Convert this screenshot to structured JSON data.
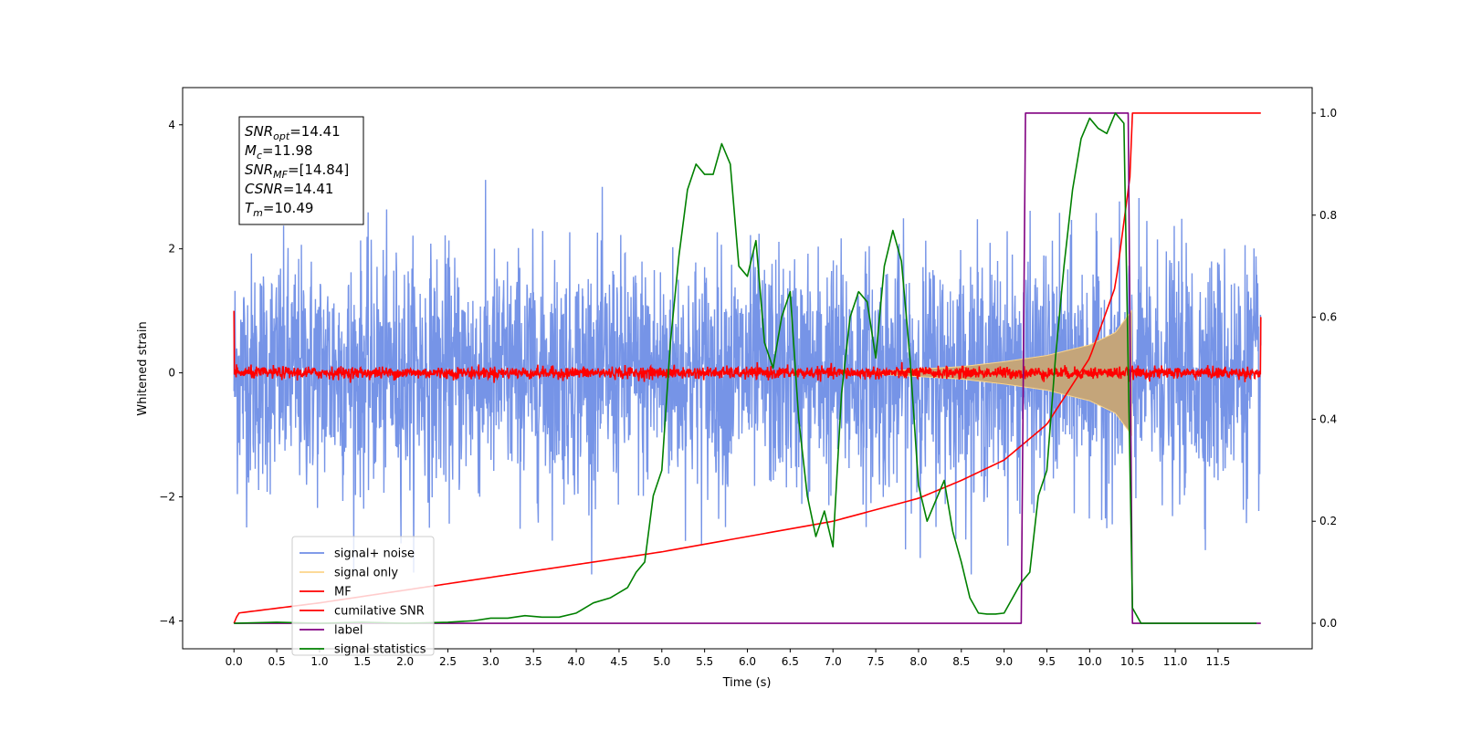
{
  "chart_data": {
    "type": "line",
    "xlabel": "Time (s)",
    "ylabel": "Whitened strain",
    "xlim": [
      -0.6,
      12.6
    ],
    "ylim": [
      -4.45,
      4.6
    ],
    "ylim_right": [
      -0.05,
      1.05
    ],
    "x_ticks": [
      "0.0",
      "0.5",
      "1.0",
      "1.5",
      "2.0",
      "2.5",
      "3.0",
      "3.5",
      "4.0",
      "4.5",
      "5.0",
      "5.5",
      "6.0",
      "6.5",
      "7.0",
      "7.5",
      "8.0",
      "8.5",
      "9.0",
      "9.5",
      "10.0",
      "10.5",
      "11.0",
      "11.5"
    ],
    "y_ticks_left": [
      "4",
      "2",
      "0",
      "−2",
      "−4"
    ],
    "y_ticks_right": [
      "1.0",
      "0.8",
      "0.6",
      "0.4",
      "0.2",
      "0.0"
    ],
    "annotation": [
      {
        "base": "SNR",
        "sub": "opt",
        "value": "=14.41"
      },
      {
        "base": "M",
        "sub": "c",
        "value": "=11.98"
      },
      {
        "base": "SNR",
        "sub": "MF",
        "value": "=[14.84]"
      },
      {
        "base": "CSNR",
        "sub": "",
        "value": "=14.41"
      },
      {
        "base": "T",
        "sub": "m",
        "value": "=10.49"
      }
    ],
    "legend": {
      "placement": "lower-left",
      "entries": [
        {
          "label": "signal+ noise",
          "color": "#6f8ee6"
        },
        {
          "label": "signal only",
          "color": "#fbd58a"
        },
        {
          "label": "MF",
          "color": "#ff0000"
        },
        {
          "label": "cumilative SNR",
          "color": "#ff0000"
        },
        {
          "label": "label",
          "color": "#800080"
        },
        {
          "label": "signal statistics",
          "color": "#008000"
        }
      ]
    },
    "series": [
      {
        "name": "signal+ noise",
        "axis": "left",
        "color": "#6f8ee6",
        "x_range": [
          0.0,
          12.0
        ],
        "std": 0.95,
        "min": -3.25,
        "max": 3.5
      },
      {
        "name": "signal only",
        "axis": "left",
        "color": "#fbd58a",
        "envelope_x": [
          7.5,
          8.5,
          9.0,
          9.5,
          10.0,
          10.3,
          10.49
        ],
        "envelope_amp": [
          0.02,
          0.1,
          0.18,
          0.28,
          0.45,
          0.65,
          1.0
        ]
      },
      {
        "name": "MF",
        "axis": "left",
        "color": "#ff0000",
        "x_range": [
          0.0,
          12.0
        ],
        "start_value": 1.0,
        "end_value": 0.9,
        "noise_amp": 0.08
      },
      {
        "name": "cumilative SNR",
        "axis": "right",
        "color": "#ff0000",
        "x": [
          0.0,
          0.05,
          1.0,
          2.0,
          3.0,
          4.0,
          5.0,
          6.0,
          7.0,
          8.0,
          8.5,
          9.0,
          9.5,
          10.0,
          10.3,
          10.49,
          10.5,
          12.0
        ],
        "values": [
          0.0,
          0.02,
          0.04,
          0.065,
          0.09,
          0.115,
          0.14,
          0.17,
          0.2,
          0.245,
          0.28,
          0.32,
          0.39,
          0.52,
          0.66,
          0.9,
          1.0,
          1.0
        ]
      },
      {
        "name": "label",
        "axis": "right",
        "color": "#800080",
        "x": [
          0.0,
          9.2,
          9.25,
          10.45,
          10.5,
          12.0
        ],
        "values": [
          0.0,
          0.0,
          1.0,
          1.0,
          0.0,
          0.0
        ]
      },
      {
        "name": "signal statistics",
        "axis": "right",
        "color": "#008000",
        "x": [
          0.0,
          0.5,
          1.0,
          1.5,
          2.0,
          2.5,
          2.8,
          3.0,
          3.2,
          3.4,
          3.6,
          3.8,
          4.0,
          4.2,
          4.4,
          4.6,
          4.7,
          4.8,
          4.9,
          5.0,
          5.1,
          5.2,
          5.3,
          5.4,
          5.5,
          5.6,
          5.7,
          5.8,
          5.9,
          6.0,
          6.1,
          6.2,
          6.3,
          6.4,
          6.5,
          6.6,
          6.7,
          6.8,
          6.9,
          7.0,
          7.1,
          7.2,
          7.3,
          7.4,
          7.5,
          7.6,
          7.7,
          7.8,
          7.9,
          8.0,
          8.1,
          8.2,
          8.3,
          8.4,
          8.5,
          8.6,
          8.7,
          8.8,
          8.9,
          9.0,
          9.1,
          9.2,
          9.3,
          9.4,
          9.5,
          9.6,
          9.7,
          9.8,
          9.9,
          10.0,
          10.1,
          10.2,
          10.3,
          10.4,
          10.5,
          10.6,
          10.7,
          11.0,
          11.5,
          11.95
        ],
        "values": [
          0.0,
          0.002,
          0.0,
          0.002,
          0.0,
          0.002,
          0.005,
          0.01,
          0.01,
          0.015,
          0.012,
          0.012,
          0.02,
          0.04,
          0.05,
          0.07,
          0.1,
          0.12,
          0.25,
          0.3,
          0.55,
          0.72,
          0.85,
          0.9,
          0.88,
          0.88,
          0.94,
          0.9,
          0.7,
          0.68,
          0.75,
          0.55,
          0.5,
          0.6,
          0.65,
          0.4,
          0.25,
          0.17,
          0.22,
          0.15,
          0.45,
          0.6,
          0.65,
          0.63,
          0.52,
          0.7,
          0.77,
          0.71,
          0.52,
          0.27,
          0.2,
          0.24,
          0.28,
          0.18,
          0.12,
          0.05,
          0.02,
          0.018,
          0.018,
          0.02,
          0.05,
          0.08,
          0.1,
          0.25,
          0.3,
          0.52,
          0.7,
          0.85,
          0.95,
          0.99,
          0.97,
          0.96,
          1.0,
          0.98,
          0.03,
          0.0,
          0.0,
          0.0,
          0.0,
          0.0
        ]
      }
    ]
  }
}
